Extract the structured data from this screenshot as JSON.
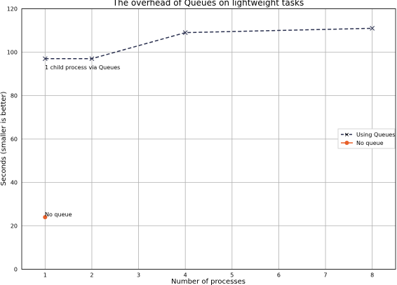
{
  "chart_data": {
    "type": "line",
    "title": "The overhead of Queues on lightweight tasks",
    "xlabel": "Number of processes",
    "ylabel": "Seconds (smaller is better)",
    "xlim": [
      0.5,
      8.5
    ],
    "ylim": [
      0,
      120
    ],
    "xticks": [
      1,
      2,
      3,
      4,
      5,
      6,
      7,
      8
    ],
    "yticks": [
      0,
      20,
      40,
      60,
      80,
      100,
      120
    ],
    "grid": true,
    "legend_position": "center-right",
    "series": [
      {
        "name": "Using Queues",
        "x": [
          1,
          2,
          4,
          8
        ],
        "y": [
          97,
          97,
          109,
          111
        ],
        "color": "#2b3150",
        "linestyle": "dashed",
        "marker": "x"
      },
      {
        "name": "No queue",
        "x": [
          1
        ],
        "y": [
          24
        ],
        "color": "#e8602a",
        "linestyle": "solid",
        "marker": "o"
      }
    ],
    "annotations": [
      {
        "text": "1 child process via Queues",
        "x": 1,
        "y": 97
      },
      {
        "text": "No queue",
        "x": 1,
        "y": 24
      }
    ]
  }
}
